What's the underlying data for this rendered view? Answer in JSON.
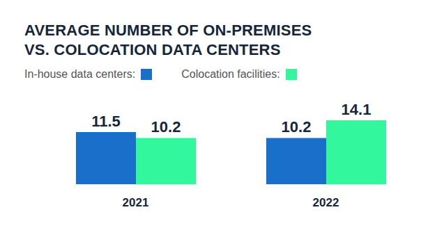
{
  "chart_data": {
    "type": "bar",
    "title": "AVERAGE NUMBER OF ON-PREMISES\nVS. COLOCATION DATA CENTERS",
    "categories": [
      "2021",
      "2022"
    ],
    "series": [
      {
        "name": "In-house data centers:",
        "color": "#1a6fcb",
        "values": [
          11.5,
          10.2
        ]
      },
      {
        "name": "Colocation facilities:",
        "color": "#33f79c",
        "values": [
          10.2,
          14.1
        ]
      }
    ],
    "data_labels": true,
    "tick_labels": "x",
    "grid": false
  }
}
